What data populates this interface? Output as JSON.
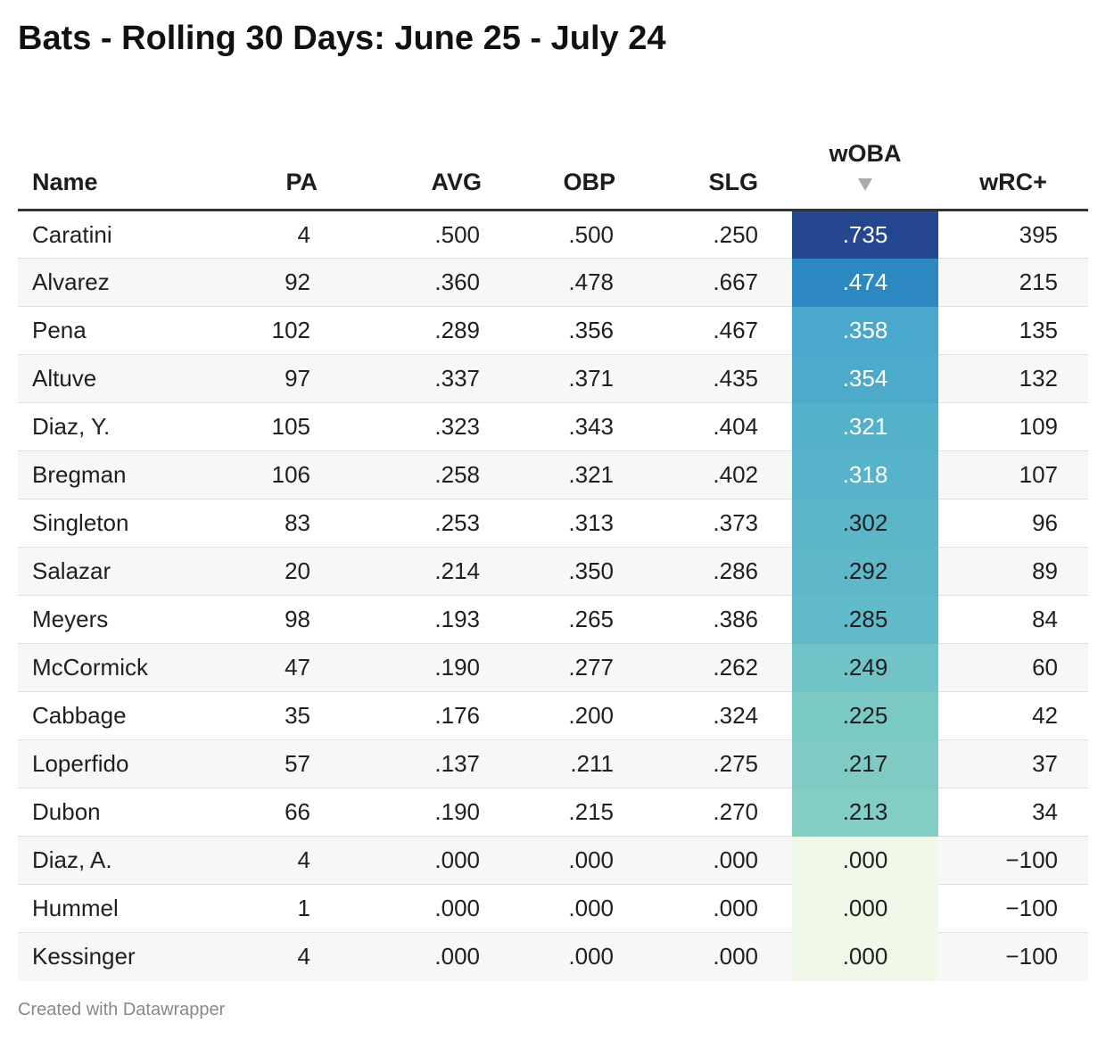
{
  "title": "Bats - Rolling 30 Days: June 25 - July 24",
  "footer": "Created with Datawrapper",
  "chart_data": {
    "type": "table",
    "title": "Bats - Rolling 30 Days: June 25 - July 24",
    "sort": {
      "column": "wOBA",
      "direction": "descending"
    },
    "columns": [
      "Name",
      "PA",
      "AVG",
      "OBP",
      "SLG",
      "wOBA",
      "wRC+"
    ],
    "heatmap_column": "wOBA",
    "rows": [
      {
        "name": "Caratini",
        "pa": "4",
        "avg": ".500",
        "obp": ".500",
        "slg": ".250",
        "woba": ".735",
        "wrc": "395",
        "woba_color": "#24478f",
        "woba_text": "#ffffff"
      },
      {
        "name": "Alvarez",
        "pa": "92",
        "avg": ".360",
        "obp": ".478",
        "slg": ".667",
        "woba": ".474",
        "wrc": "215",
        "woba_color": "#2b88c0",
        "woba_text": "#ffffff"
      },
      {
        "name": "Pena",
        "pa": "102",
        "avg": ".289",
        "obp": ".356",
        "slg": ".467",
        "woba": ".358",
        "wrc": "135",
        "woba_color": "#4aa8cc",
        "woba_text": "#ffffff"
      },
      {
        "name": "Altuve",
        "pa": "97",
        "avg": ".337",
        "obp": ".371",
        "slg": ".435",
        "woba": ".354",
        "wrc": "132",
        "woba_color": "#4daacb",
        "woba_text": "#ffffff"
      },
      {
        "name": "Diaz, Y.",
        "pa": "105",
        "avg": ".323",
        "obp": ".343",
        "slg": ".404",
        "woba": ".321",
        "wrc": "109",
        "woba_color": "#54b1ca",
        "woba_text": "#ffffff"
      },
      {
        "name": "Bregman",
        "pa": "106",
        "avg": ".258",
        "obp": ".321",
        "slg": ".402",
        "woba": ".318",
        "wrc": "107",
        "woba_color": "#56b3ca",
        "woba_text": "#ffffff"
      },
      {
        "name": "Singleton",
        "pa": "83",
        "avg": ".253",
        "obp": ".313",
        "slg": ".373",
        "woba": ".302",
        "wrc": "96",
        "woba_color": "#5bb6c8",
        "woba_text": "#1f1f1f"
      },
      {
        "name": "Salazar",
        "pa": "20",
        "avg": ".214",
        "obp": ".350",
        "slg": ".286",
        "woba": ".292",
        "wrc": "89",
        "woba_color": "#5eb8c8",
        "woba_text": "#1f1f1f"
      },
      {
        "name": "Meyers",
        "pa": "98",
        "avg": ".193",
        "obp": ".265",
        "slg": ".386",
        "woba": ".285",
        "wrc": "84",
        "woba_color": "#61bac8",
        "woba_text": "#1f1f1f"
      },
      {
        "name": "McCormick",
        "pa": "47",
        "avg": ".190",
        "obp": ".277",
        "slg": ".262",
        "woba": ".249",
        "wrc": "60",
        "woba_color": "#70c3c6",
        "woba_text": "#1f1f1f"
      },
      {
        "name": "Cabbage",
        "pa": "35",
        "avg": ".176",
        "obp": ".200",
        "slg": ".324",
        "woba": ".225",
        "wrc": "42",
        "woba_color": "#7ac9c5",
        "woba_text": "#1f1f1f"
      },
      {
        "name": "Loperfido",
        "pa": "57",
        "avg": ".137",
        "obp": ".211",
        "slg": ".275",
        "woba": ".217",
        "wrc": "37",
        "woba_color": "#7fcbc4",
        "woba_text": "#1f1f1f"
      },
      {
        "name": "Dubon",
        "pa": "66",
        "avg": ".190",
        "obp": ".215",
        "slg": ".270",
        "woba": ".213",
        "wrc": "34",
        "woba_color": "#82cdc4",
        "woba_text": "#1f1f1f"
      },
      {
        "name": "Diaz, A.",
        "pa": "4",
        "avg": ".000",
        "obp": ".000",
        "slg": ".000",
        "woba": ".000",
        "wrc": "−100",
        "woba_color": "#f0f8e8",
        "woba_text": "#1f1f1f"
      },
      {
        "name": "Hummel",
        "pa": "1",
        "avg": ".000",
        "obp": ".000",
        "slg": ".000",
        "woba": ".000",
        "wrc": "−100",
        "woba_color": "#f0f8e8",
        "woba_text": "#1f1f1f"
      },
      {
        "name": "Kessinger",
        "pa": "4",
        "avg": ".000",
        "obp": ".000",
        "slg": ".000",
        "woba": ".000",
        "wrc": "−100",
        "woba_color": "#f0f8e8",
        "woba_text": "#1f1f1f"
      }
    ]
  }
}
